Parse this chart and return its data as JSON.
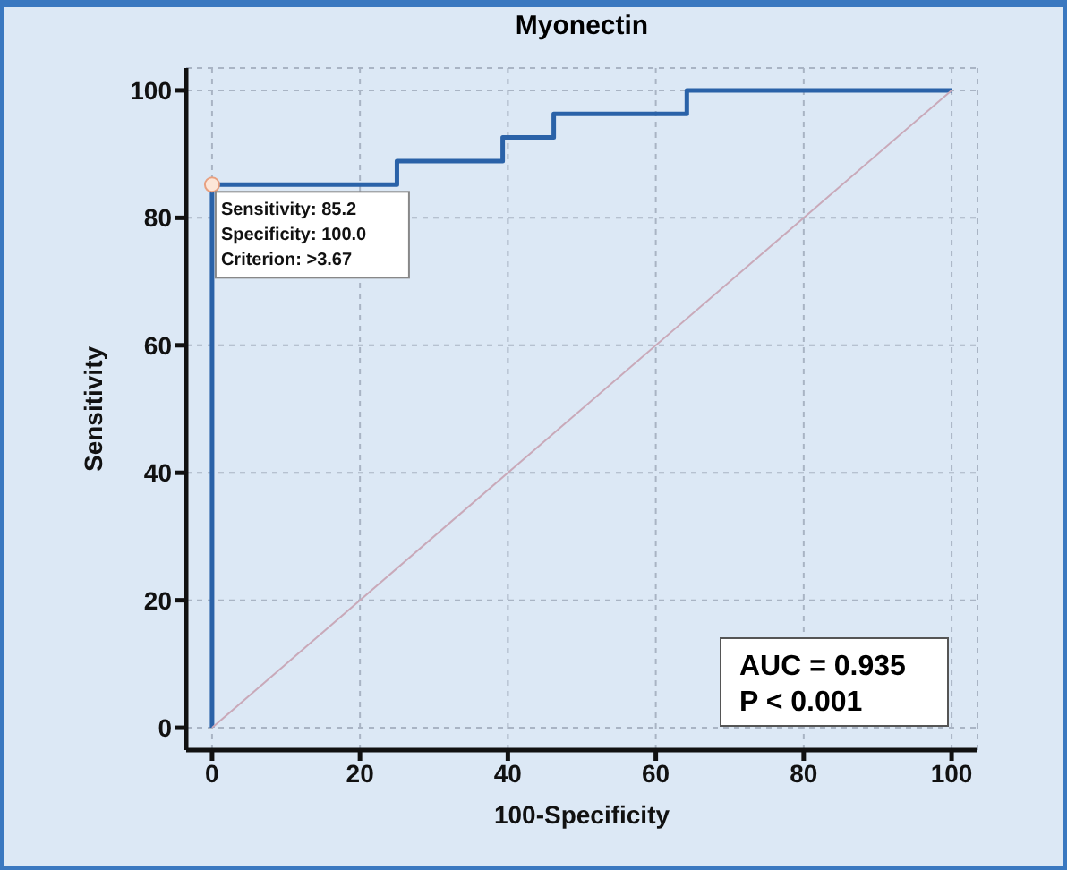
{
  "chart_data": {
    "type": "step",
    "title": "Myonectin",
    "xlabel": "100-Specificity",
    "ylabel": "Sensitivity",
    "series": [
      {
        "color": "#2a62a8",
        "x": [
          0,
          0,
          25,
          39.3,
          46.2,
          64.2,
          100
        ],
        "values": [
          0,
          85.2,
          88.9,
          92.6,
          96.3,
          100,
          100
        ]
      },
      {
        "type": "line",
        "color": "#c9a9b9",
        "x": [
          0,
          100
        ],
        "values": [
          0,
          100
        ]
      }
    ],
    "xlim": [
      -3.5,
      103.5
    ],
    "ylim": [
      -3.5,
      103.5
    ],
    "xticks": [
      0,
      20,
      40,
      60,
      80,
      100
    ],
    "yticks": [
      0,
      20,
      40,
      60,
      80,
      100
    ],
    "grid": true,
    "marker": "none",
    "line_style": "solid",
    "annotations": [
      {
        "text": "Sensitivity: 85.2\nSpecificity: 100.0\nCriterion: >3.67",
        "x": 0,
        "y": 85.2
      },
      "AUC = 0.935\nP < 0.001"
    ]
  }
}
